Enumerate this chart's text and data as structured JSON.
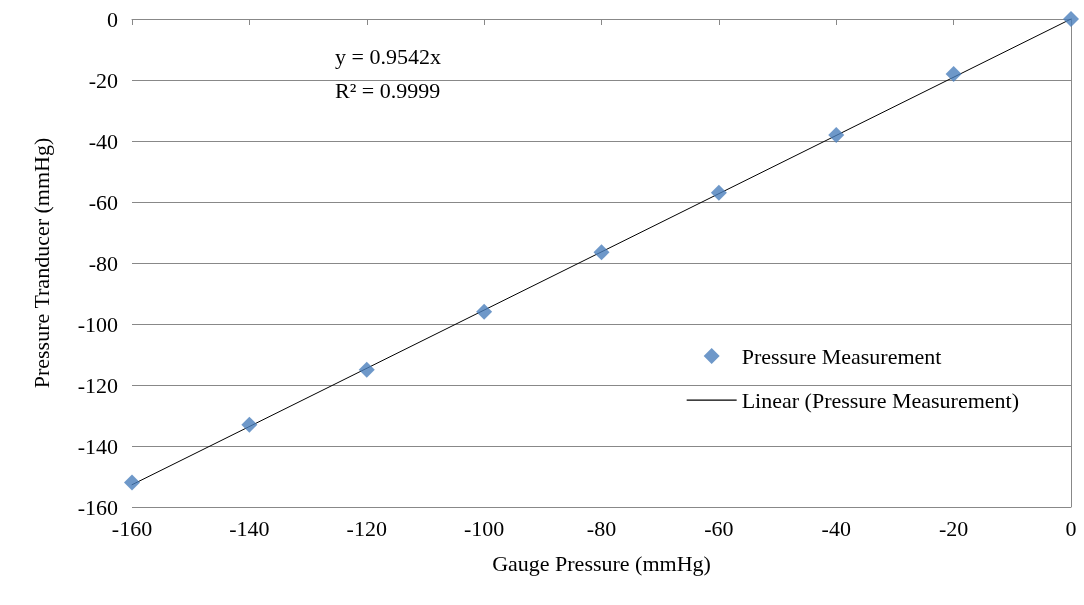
{
  "chart_data": {
    "type": "scatter",
    "xlabel": "Gauge Pressure (mmHg)",
    "ylabel": "Pressure Tranducer (mmHg)",
    "annotations": [
      "y = 0.9542x",
      "R² = 0.9999"
    ],
    "series": [
      {
        "name": "Pressure Measurement",
        "color": "#4a7ebb",
        "x": [
          -160,
          -140,
          -120,
          -100,
          -80,
          -60,
          -40,
          -20,
          0
        ],
        "values": [
          -152,
          -133,
          -115,
          -96,
          -76.5,
          -57,
          -38,
          -18,
          0
        ],
        "marker": "diamond"
      },
      {
        "name": "Linear (Pressure Measurement)",
        "type": "line",
        "color": "#000000",
        "x": [
          -160,
          0
        ],
        "values": [
          -152.7,
          0
        ],
        "marker": "none",
        "line_style": "solid"
      }
    ],
    "xlim": [
      -160,
      0
    ],
    "xticks": [
      -160,
      -140,
      -120,
      -100,
      -80,
      -60,
      -40,
      -20,
      0
    ],
    "ylim": [
      -160,
      0
    ],
    "yticks": [
      -160,
      -140,
      -120,
      -100,
      -80,
      -60,
      -40,
      -20,
      0
    ],
    "grid": "y",
    "legend": "right"
  }
}
